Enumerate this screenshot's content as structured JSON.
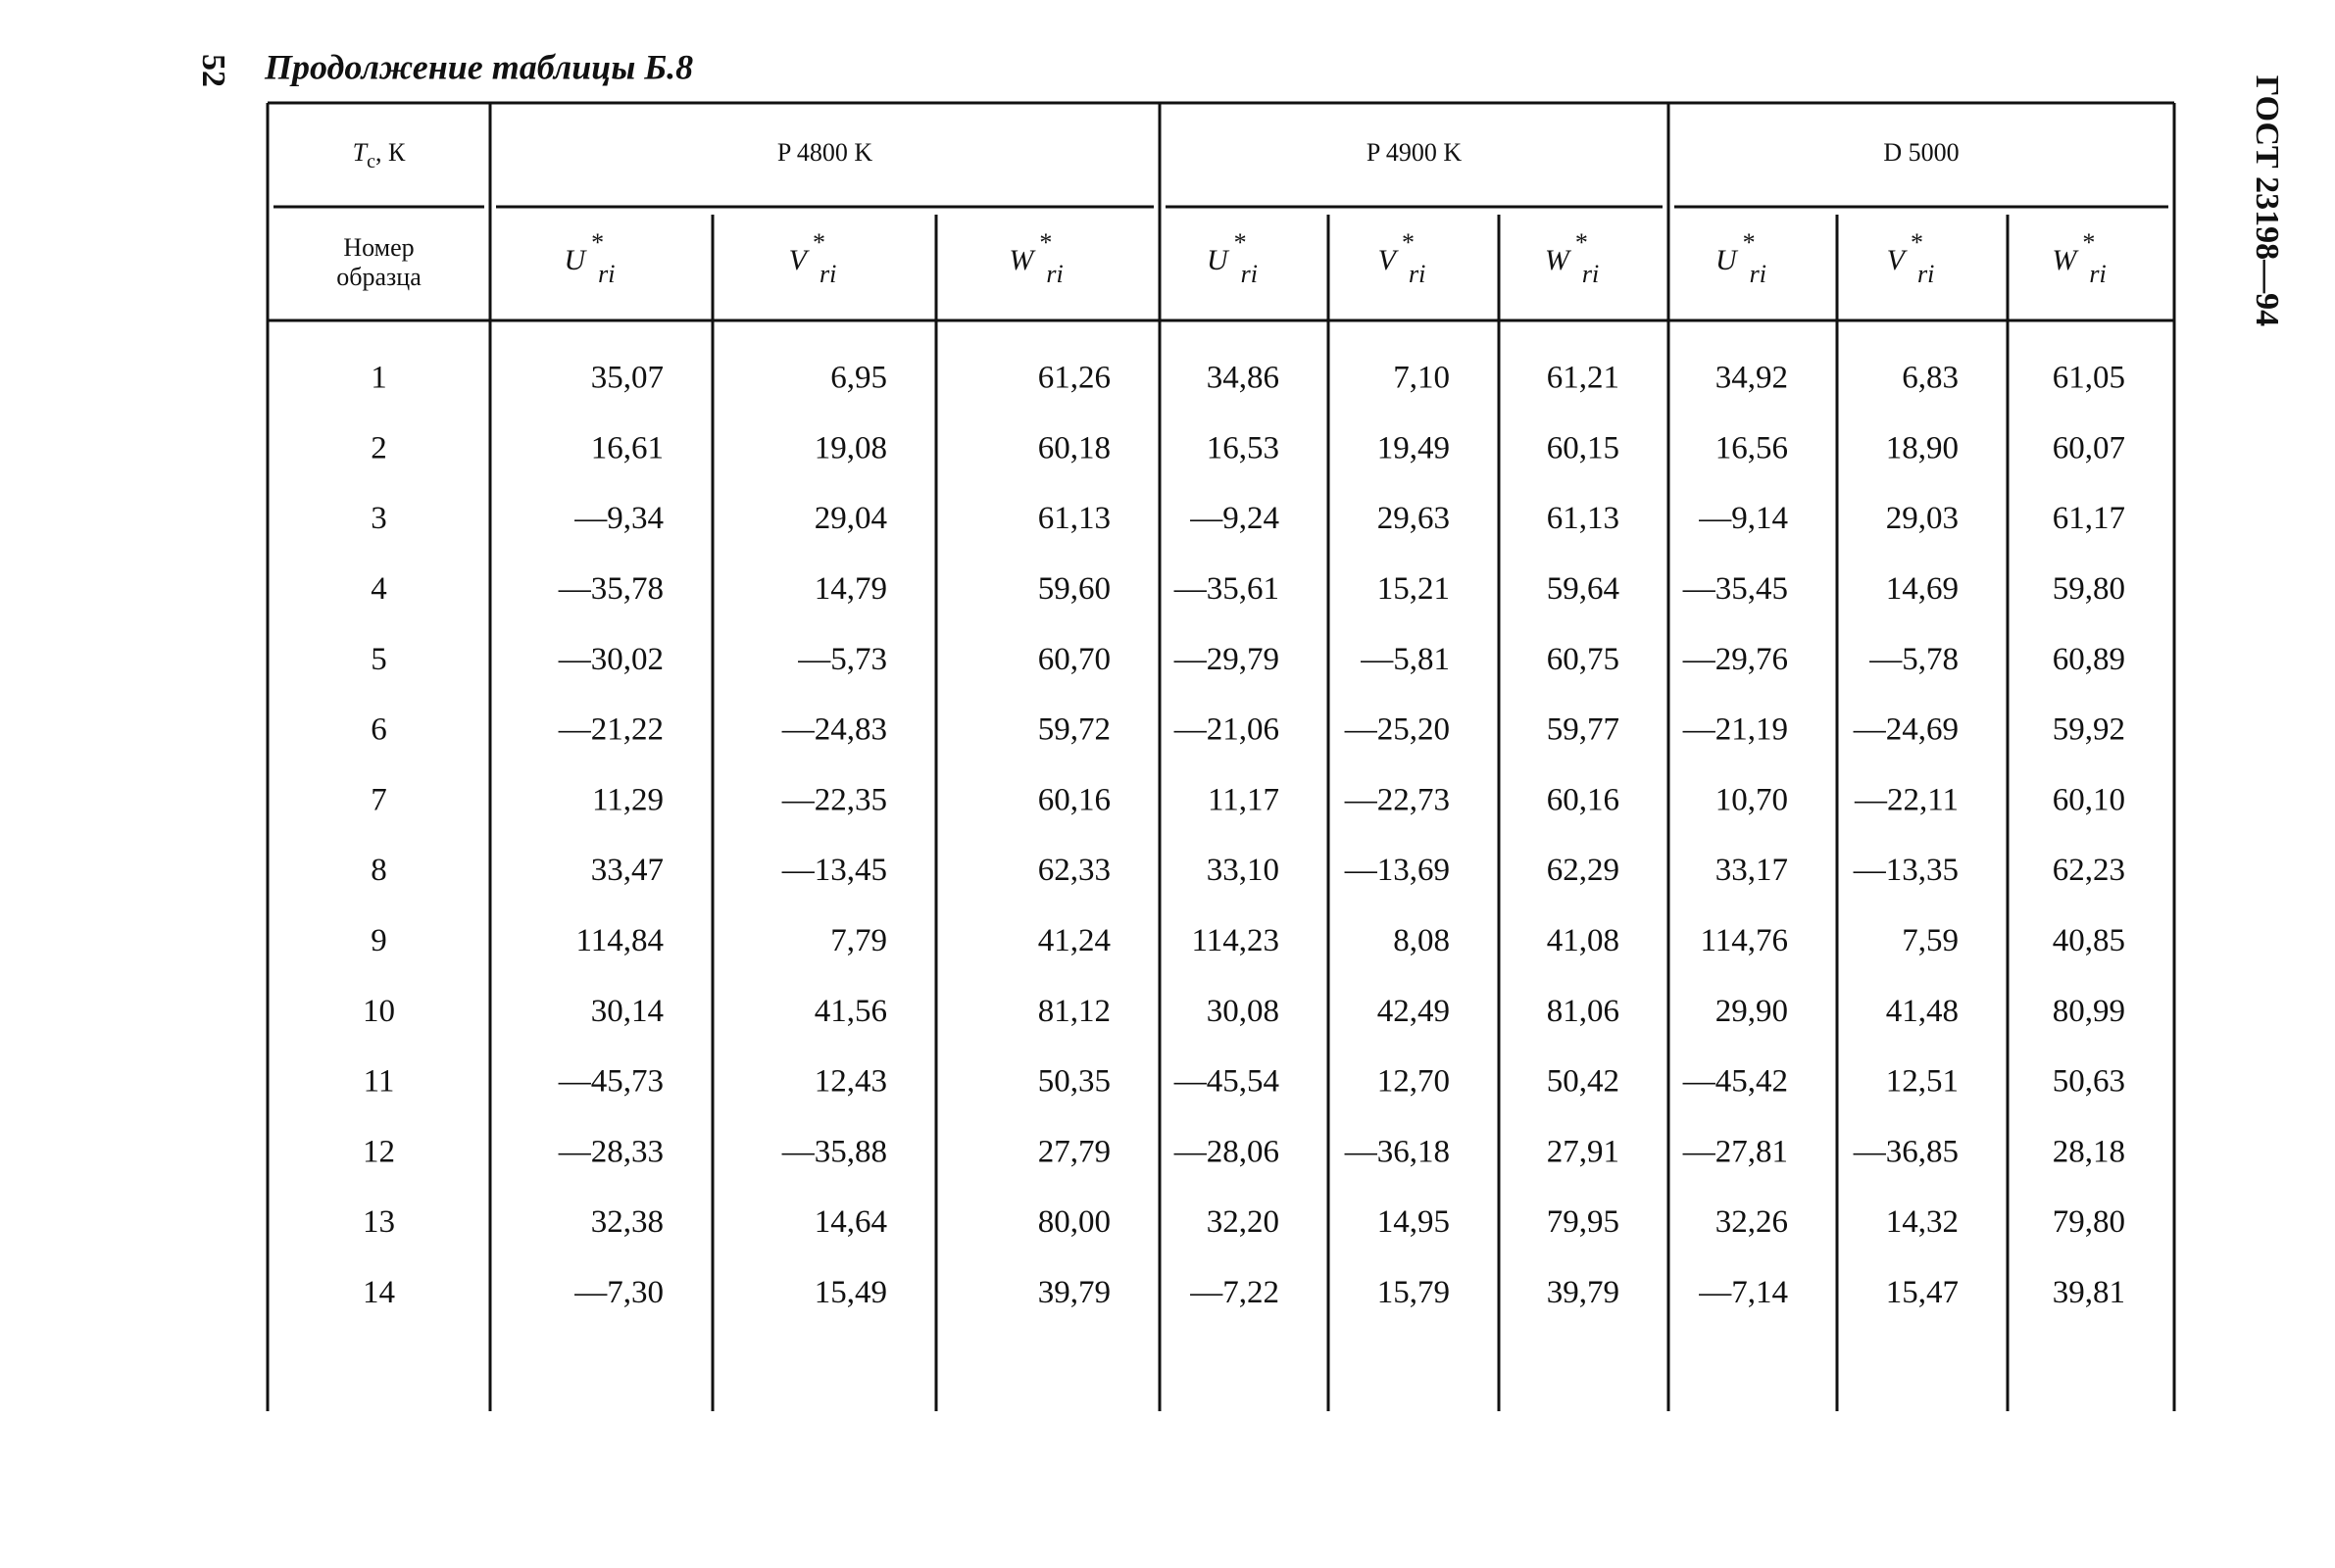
{
  "page_number": "52",
  "title": "Продолжение таблицы Б.8",
  "side_text": "ГОСТ 23198—94",
  "table": {
    "corner_header": {
      "symbol": "T",
      "subscript": "с",
      "suffix": ", К"
    },
    "row_header": "Номер образца",
    "groups": [
      "P 4800 K",
      "P 4900 K",
      "D 5000"
    ],
    "columns": [
      {
        "symbol": "U",
        "sup": "*",
        "sub": "ri"
      },
      {
        "symbol": "V",
        "sup": "*",
        "sub": "ri"
      },
      {
        "symbol": "W",
        "sup": "*",
        "sub": "ri"
      },
      {
        "symbol": "U",
        "sup": "*",
        "sub": "ri"
      },
      {
        "symbol": "V",
        "sup": "*",
        "sub": "ri"
      },
      {
        "symbol": "W",
        "sup": "*",
        "sub": "ri"
      },
      {
        "symbol": "U",
        "sup": "*",
        "sub": "ri"
      },
      {
        "symbol": "V",
        "sup": "*",
        "sub": "ri"
      },
      {
        "symbol": "W",
        "sup": "*",
        "sub": "ri"
      }
    ],
    "rows": [
      [
        "1",
        "35,07",
        "6,95",
        "61,26",
        "34,86",
        "7,10",
        "61,21",
        "34,92",
        "6,83",
        "61,05"
      ],
      [
        "2",
        "16,61",
        "19,08",
        "60,18",
        "16,53",
        "19,49",
        "60,15",
        "16,56",
        "18,90",
        "60,07"
      ],
      [
        "3",
        "—9,34",
        "29,04",
        "61,13",
        "—9,24",
        "29,63",
        "61,13",
        "—9,14",
        "29,03",
        "61,17"
      ],
      [
        "4",
        "—35,78",
        "14,79",
        "59,60",
        "—35,61",
        "15,21",
        "59,64",
        "—35,45",
        "14,69",
        "59,80"
      ],
      [
        "5",
        "—30,02",
        "—5,73",
        "60,70",
        "—29,79",
        "—5,81",
        "60,75",
        "—29,76",
        "—5,78",
        "60,89"
      ],
      [
        "6",
        "—21,22",
        "—24,83",
        "59,72",
        "—21,06",
        "—25,20",
        "59,77",
        "—21,19",
        "—24,69",
        "59,92"
      ],
      [
        "7",
        "11,29",
        "—22,35",
        "60,16",
        "11,17",
        "—22,73",
        "60,16",
        "10,70",
        "—22,11",
        "60,10"
      ],
      [
        "8",
        "33,47",
        "—13,45",
        "62,33",
        "33,10",
        "—13,69",
        "62,29",
        "33,17",
        "—13,35",
        "62,23"
      ],
      [
        "9",
        "114,84",
        "7,79",
        "41,24",
        "114,23",
        "8,08",
        "41,08",
        "114,76",
        "7,59",
        "40,85"
      ],
      [
        "10",
        "30,14",
        "41,56",
        "81,12",
        "30,08",
        "42,49",
        "81,06",
        "29,90",
        "41,48",
        "80,99"
      ],
      [
        "11",
        "—45,73",
        "12,43",
        "50,35",
        "—45,54",
        "12,70",
        "50,42",
        "—45,42",
        "12,51",
        "50,63"
      ],
      [
        "12",
        "—28,33",
        "—35,88",
        "27,79",
        "—28,06",
        "—36,18",
        "27,91",
        "—27,81",
        "—36,85",
        "28,18"
      ],
      [
        "13",
        "32,38",
        "14,64",
        "80,00",
        "32,20",
        "14,95",
        "79,95",
        "32,26",
        "14,32",
        "79,80"
      ],
      [
        "14",
        "—7,30",
        "15,49",
        "39,79",
        "—7,22",
        "15,79",
        "39,79",
        "—7,14",
        "15,47",
        "39,81"
      ]
    ]
  }
}
